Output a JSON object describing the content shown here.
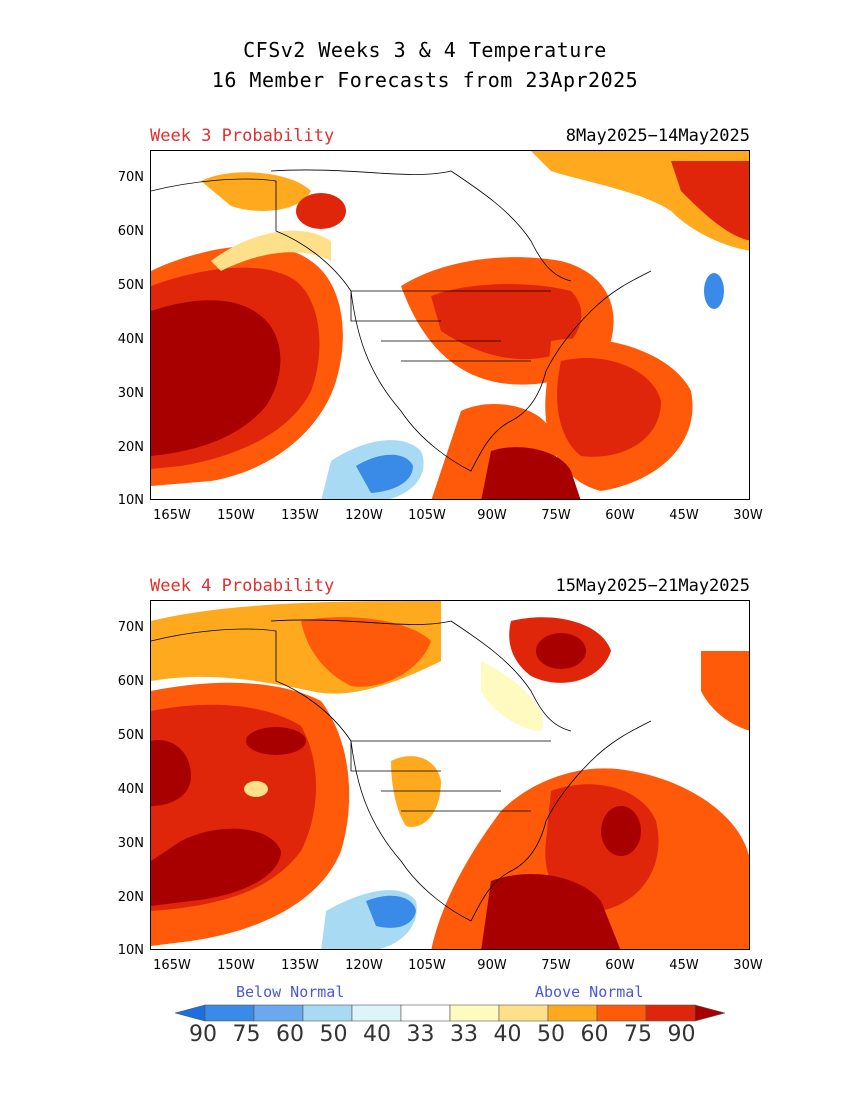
{
  "title": {
    "line1": "CFSv2 Weeks 3 & 4 Temperature",
    "line2": "16 Member Forecasts from 23Apr2025"
  },
  "panels": [
    {
      "label": "Week 3 Probability",
      "dates": "8May2025−14May2025"
    },
    {
      "label": "Week 4 Probability",
      "dates": "15May2025−21May2025"
    }
  ],
  "axes": {
    "lat_labels": [
      "70N",
      "60N",
      "50N",
      "40N",
      "30N",
      "20N",
      "10N"
    ],
    "lon_labels": [
      "165W",
      "150W",
      "135W",
      "120W",
      "105W",
      "90W",
      "75W",
      "60W",
      "45W",
      "30W"
    ]
  },
  "legend": {
    "below_label": "Below Normal",
    "above_label": "Above Normal",
    "values": [
      "90",
      "75",
      "60",
      "50",
      "40",
      "33",
      "33",
      "40",
      "50",
      "60",
      "75",
      "90"
    ],
    "colors": [
      "#1d6ee0",
      "#3a8ae8",
      "#6aa8ef",
      "#a8daf3",
      "#dcf4fa",
      "#ffffff",
      "#fffabf",
      "#ffe08a",
      "#ffaa1e",
      "#ff5a0a",
      "#e0260a",
      "#a80000"
    ]
  }
}
